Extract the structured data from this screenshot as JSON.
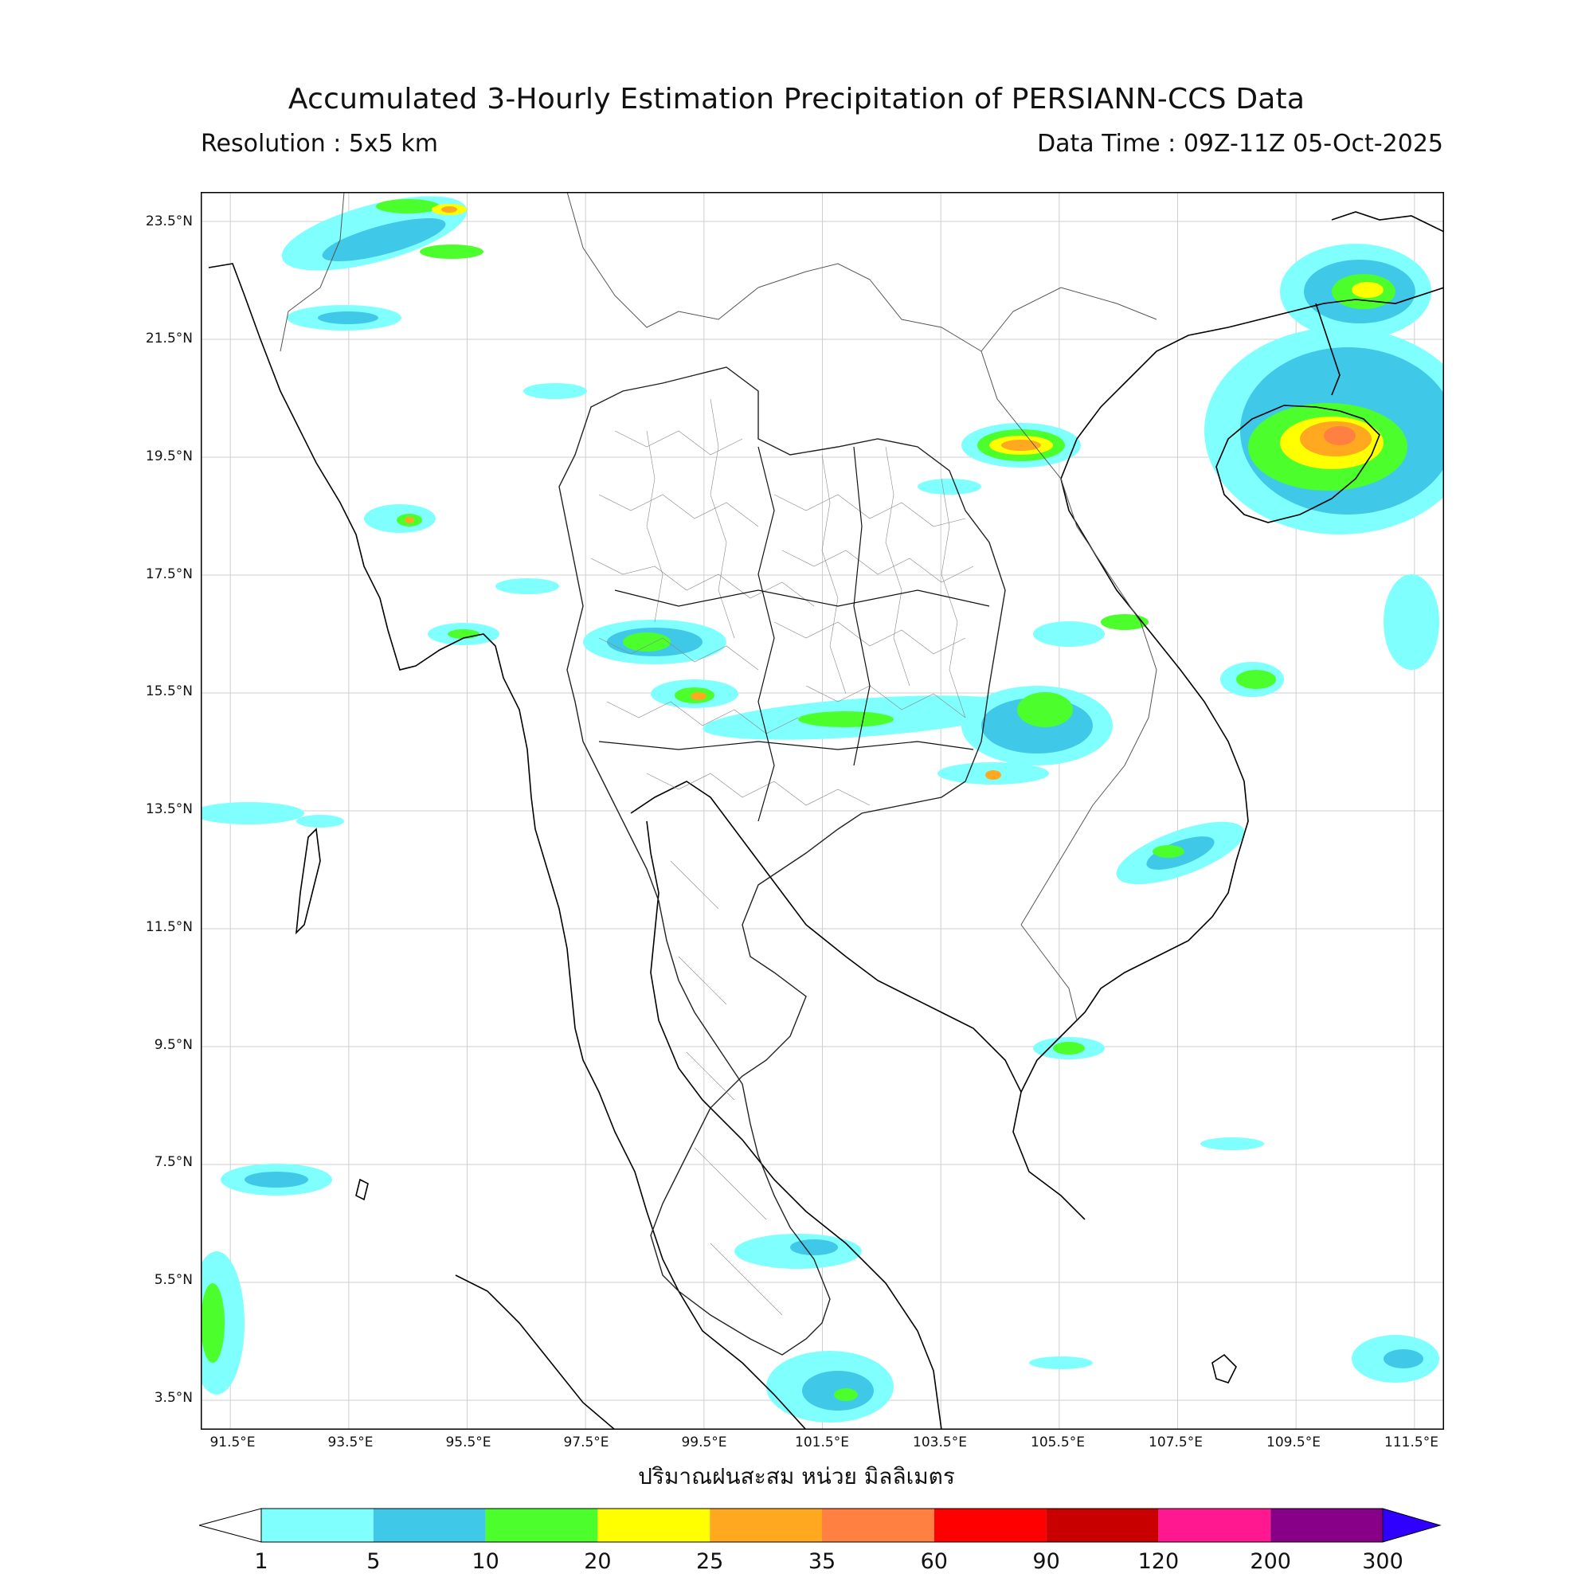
{
  "header": {
    "title": "Accumulated 3-Hourly Estimation Precipitation of PERSIANN-CCS Data",
    "resolution": "Resolution : 5x5 km",
    "data_time": "Data Time : 09Z-11Z 05-Oct-2025"
  },
  "axes": {
    "lat_labels": [
      "23.5°N",
      "21.5°N",
      "19.5°N",
      "17.5°N",
      "15.5°N",
      "13.5°N",
      "11.5°N",
      "9.5°N",
      "7.5°N",
      "5.5°N",
      "3.5°N"
    ],
    "lon_labels": [
      "91.5°E",
      "93.5°E",
      "95.5°E",
      "97.5°E",
      "99.5°E",
      "101.5°E",
      "103.5°E",
      "105.5°E",
      "107.5°E",
      "109.5°E",
      "111.5°E"
    ],
    "lon_range": [
      91.0,
      112.0
    ],
    "lat_range": [
      3.0,
      24.0
    ],
    "grid": true
  },
  "unit_label": "ปริมาณฝนสะสม หน่วย มิลลิเมตร",
  "colorbar": {
    "ticks": [
      "1",
      "5",
      "10",
      "20",
      "25",
      "35",
      "60",
      "90",
      "120",
      "200",
      "300"
    ],
    "colors": [
      "#80ffff",
      "#40c8e8",
      "#4cff2c",
      "#ffff00",
      "#ffa820",
      "#ff8040",
      "#ff0000",
      "#c80000",
      "#ff1890",
      "#880088"
    ],
    "under_color": "#ffffff",
    "over_color": "#3000ff"
  },
  "rain_palette": {
    "light": "#80ffff",
    "moderate": "#40c8e8",
    "heavy": "#4cff2c",
    "very_heavy": "#ffff00",
    "intense": "#ffa820",
    "extreme": "#ff8040"
  }
}
